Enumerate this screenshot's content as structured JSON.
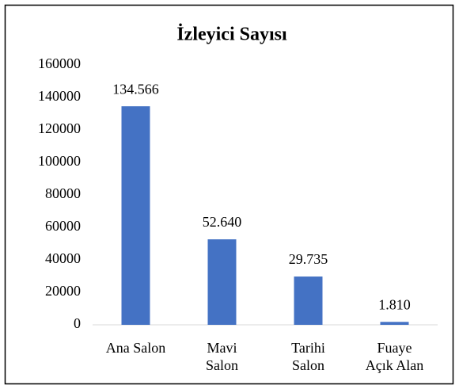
{
  "chart_data": {
    "type": "bar",
    "title": "İzleyici Sayısı",
    "categories": [
      "Ana Salon",
      "Mavi\nSalon",
      "Tarihi\nSalon",
      "Fuaye\nAçık Alan"
    ],
    "values": [
      134566,
      52640,
      29735,
      1810
    ],
    "value_labels": [
      "134.566",
      "52.640",
      "29.735",
      "1.810"
    ],
    "color": "#4472c4",
    "ylim": [
      0,
      160000
    ],
    "yticks": [
      0,
      20000,
      40000,
      60000,
      80000,
      100000,
      120000,
      140000,
      160000
    ],
    "grid": false
  }
}
